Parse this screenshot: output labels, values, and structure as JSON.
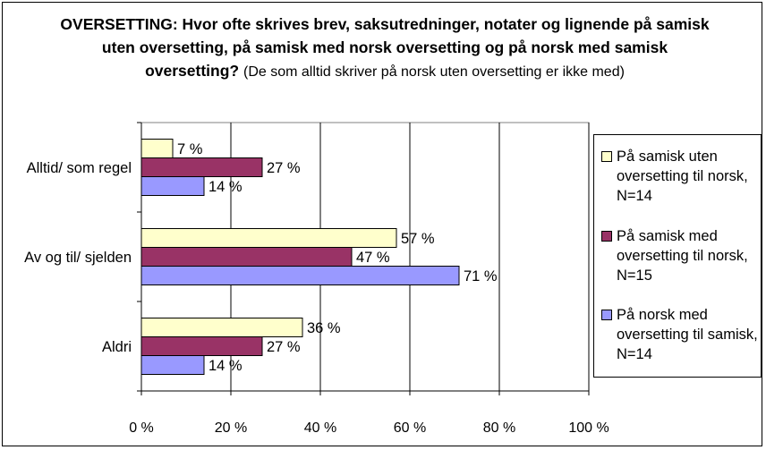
{
  "chart_data": {
    "type": "bar",
    "orientation": "horizontal",
    "title": "OVERSETTING: Hvor ofte skrives brev, saksutredninger, notater og lignende på samisk uten oversetting, på samisk med norsk oversetting og på norsk med samisk oversetting?",
    "title_note": "(De som alltid skriver på norsk uten oversetting er ikke med)",
    "categories": [
      "Alltid/ som regel",
      "Av og til/ sjelden",
      "Aldri"
    ],
    "series": [
      {
        "name": "På samisk uten oversetting til norsk, N=14",
        "color": "#FFFFCC",
        "values": [
          7,
          57,
          36
        ],
        "labels": [
          "7 %",
          "57 %",
          "36 %"
        ]
      },
      {
        "name": "På samisk med oversetting til norsk, N=15",
        "color": "#993366",
        "values": [
          27,
          47,
          27
        ],
        "labels": [
          "27 %",
          "47 %",
          "27 %"
        ]
      },
      {
        "name": "På norsk med oversetting til samisk, N=14",
        "color": "#9999FF",
        "values": [
          14,
          71,
          14
        ],
        "labels": [
          "14 %",
          "71 %",
          "14 %"
        ]
      }
    ],
    "xlim": [
      0,
      100
    ],
    "xticks": [
      0,
      20,
      40,
      60,
      80,
      100
    ],
    "xtick_labels": [
      "0 %",
      "20 %",
      "40 %",
      "60 %",
      "80 %",
      "100 %"
    ],
    "grid": true,
    "legend_position": "right"
  }
}
